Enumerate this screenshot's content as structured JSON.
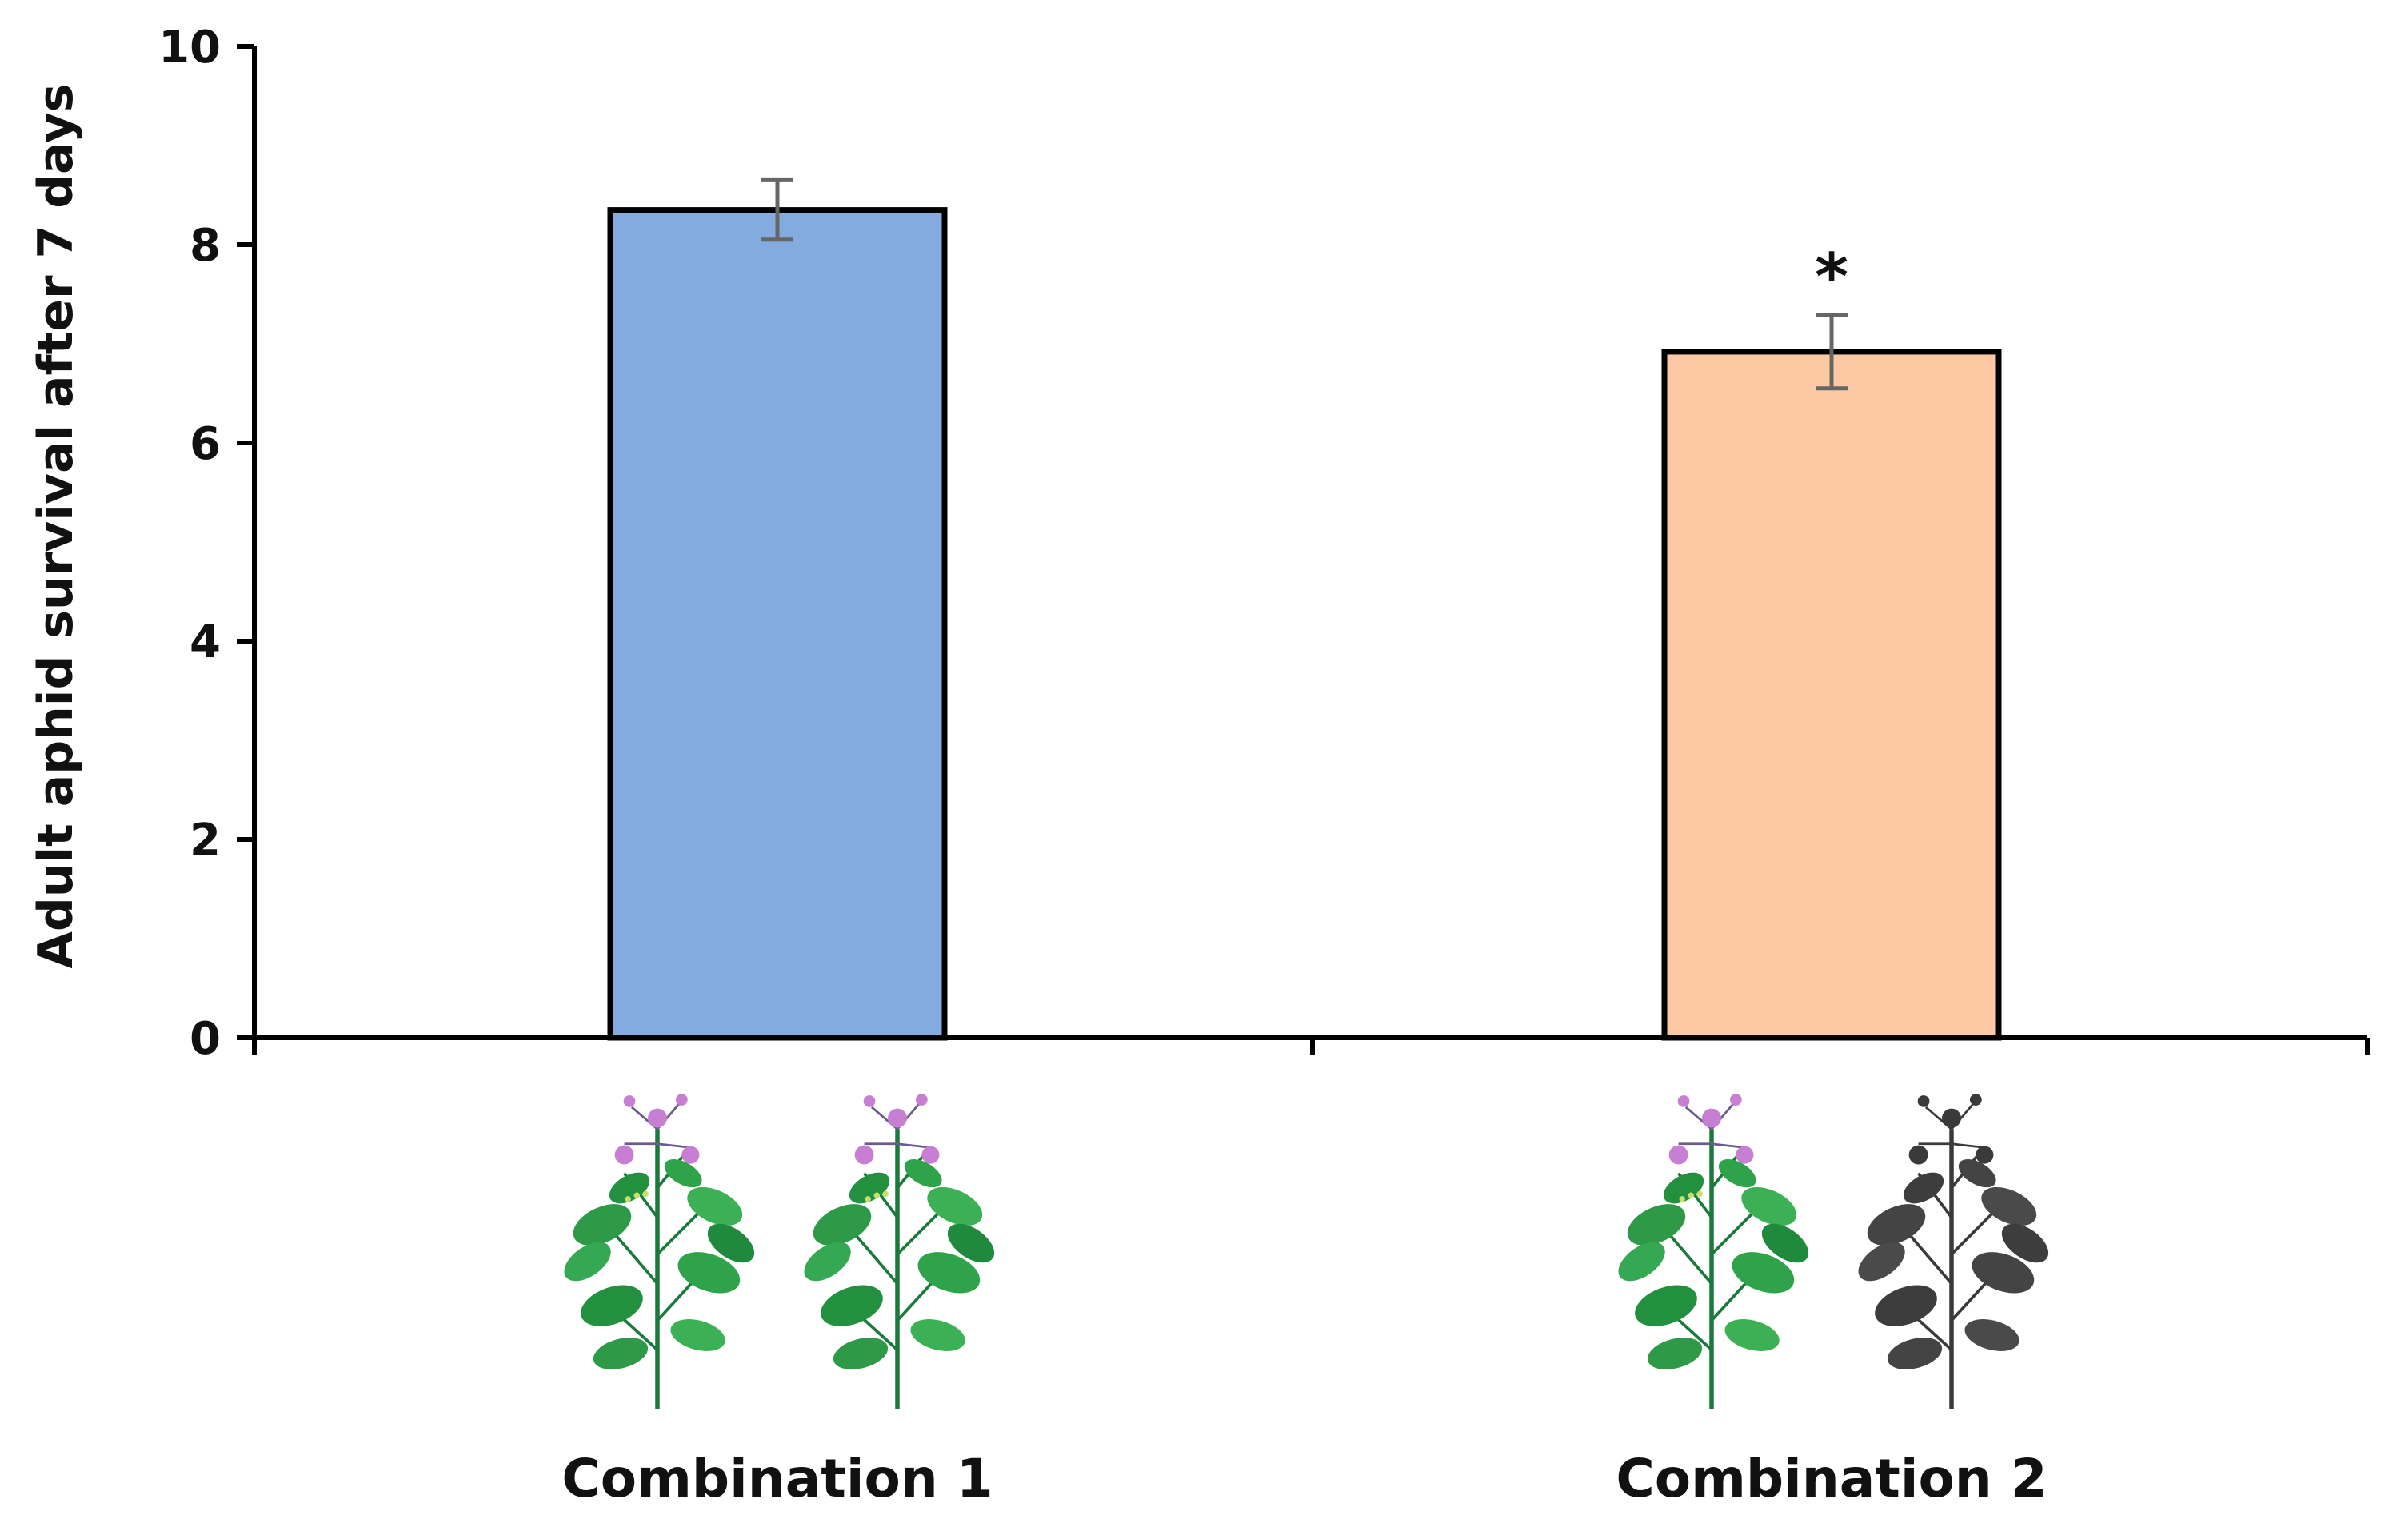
{
  "chart_data": {
    "type": "bar",
    "title": "",
    "xlabel": "",
    "ylabel": "Adult aphid survival after 7 days",
    "ylim": [
      0,
      10
    ],
    "yticks": [
      0,
      2,
      4,
      6,
      8,
      10
    ],
    "ytick_labels": [
      "0",
      "2",
      "4",
      "6",
      "8",
      "10"
    ],
    "grid": false,
    "categories": [
      "Combination 1",
      "Combination 2"
    ],
    "values": [
      8.35,
      6.92
    ],
    "errors": [
      0.3,
      0.37
    ],
    "annotations": [
      "",
      "*"
    ],
    "colors": [
      "#84abe0",
      "#fdc9a4"
    ],
    "edge_color": "#000000",
    "error_color": "#666666",
    "plants": [
      [
        {
          "name": "plant-icon",
          "color": "green"
        },
        {
          "name": "plant-icon",
          "color": "green"
        }
      ],
      [
        {
          "name": "plant-icon",
          "color": "green"
        },
        {
          "name": "plant-silhouette-icon",
          "color": "dark"
        }
      ]
    ]
  }
}
